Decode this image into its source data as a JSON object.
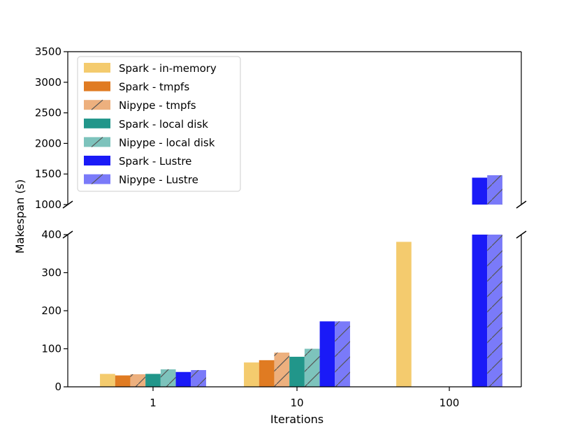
{
  "chart_data": {
    "type": "bar",
    "xlabel": "Iterations",
    "ylabel": "Makespan (s)",
    "categories": [
      "1",
      "10",
      "100"
    ],
    "axis_break": {
      "lower_ylim": [
        0,
        400
      ],
      "upper_ylim": [
        1000,
        3500
      ]
    },
    "lower_yticks": [
      "0",
      "100",
      "200",
      "300",
      "400"
    ],
    "upper_yticks": [
      "1000",
      "1500",
      "2000",
      "2500",
      "3000",
      "3500"
    ],
    "legend_position": "upper-left",
    "series": [
      {
        "name": "Spark - in-memory",
        "color": "#F4CB6E",
        "hatch": false,
        "values": [
          34,
          64,
          381
        ]
      },
      {
        "name": "Spark - tmpfs",
        "color": "#E07B22",
        "hatch": false,
        "values": [
          30,
          70,
          null
        ]
      },
      {
        "name": "Nipype - tmpfs",
        "color": "#EDB07E",
        "hatch": true,
        "values": [
          33,
          90,
          null
        ]
      },
      {
        "name": "Spark - local disk",
        "color": "#21968A",
        "hatch": false,
        "values": [
          34,
          79,
          null
        ]
      },
      {
        "name": "Nipype - local disk",
        "color": "#7DC3BC",
        "hatch": true,
        "values": [
          46,
          100,
          null
        ]
      },
      {
        "name": "Spark - Lustre",
        "color": "#1A1AF7",
        "hatch": false,
        "values": [
          39,
          172,
          1440
        ]
      },
      {
        "name": "Nipype - Lustre",
        "color": "#7A7AF9",
        "hatch": true,
        "values": [
          44,
          172,
          1480
        ]
      }
    ]
  }
}
